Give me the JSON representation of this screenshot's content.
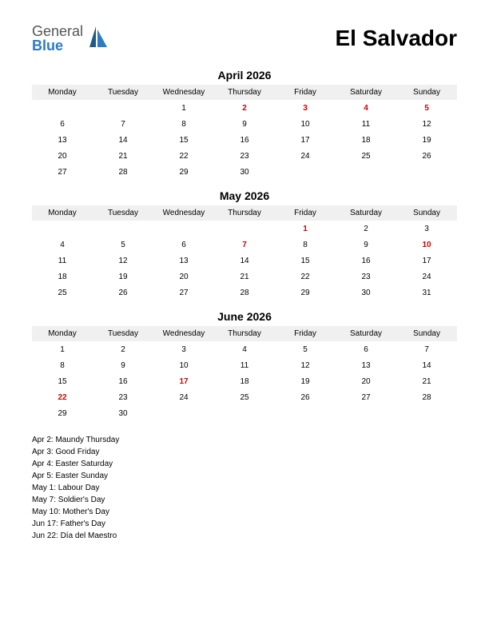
{
  "logo": {
    "general": "General",
    "blue": "Blue",
    "icon_color_1": "#1f5a8a",
    "icon_color_2": "#2b7cc4"
  },
  "country": "El Salvador",
  "day_headers": [
    "Monday",
    "Tuesday",
    "Wednesday",
    "Thursday",
    "Friday",
    "Saturday",
    "Sunday"
  ],
  "month_title_color": "#000000",
  "header_bg": "#f0f0f0",
  "holiday_color": "#cc0000",
  "text_color": "#000000",
  "fontsize_title": 28,
  "fontsize_month": 14,
  "fontsize_cell": 10,
  "months": [
    {
      "title": "April 2026",
      "weeks": [
        [
          {
            "d": ""
          },
          {
            "d": ""
          },
          {
            "d": "1"
          },
          {
            "d": "2",
            "h": true
          },
          {
            "d": "3",
            "h": true
          },
          {
            "d": "4",
            "h": true
          },
          {
            "d": "5",
            "h": true
          }
        ],
        [
          {
            "d": "6"
          },
          {
            "d": "7"
          },
          {
            "d": "8"
          },
          {
            "d": "9"
          },
          {
            "d": "10"
          },
          {
            "d": "11"
          },
          {
            "d": "12"
          }
        ],
        [
          {
            "d": "13"
          },
          {
            "d": "14"
          },
          {
            "d": "15"
          },
          {
            "d": "16"
          },
          {
            "d": "17"
          },
          {
            "d": "18"
          },
          {
            "d": "19"
          }
        ],
        [
          {
            "d": "20"
          },
          {
            "d": "21"
          },
          {
            "d": "22"
          },
          {
            "d": "23"
          },
          {
            "d": "24"
          },
          {
            "d": "25"
          },
          {
            "d": "26"
          }
        ],
        [
          {
            "d": "27"
          },
          {
            "d": "28"
          },
          {
            "d": "29"
          },
          {
            "d": "30"
          },
          {
            "d": ""
          },
          {
            "d": ""
          },
          {
            "d": ""
          }
        ]
      ]
    },
    {
      "title": "May 2026",
      "weeks": [
        [
          {
            "d": ""
          },
          {
            "d": ""
          },
          {
            "d": ""
          },
          {
            "d": ""
          },
          {
            "d": "1",
            "h": true
          },
          {
            "d": "2"
          },
          {
            "d": "3"
          }
        ],
        [
          {
            "d": "4"
          },
          {
            "d": "5"
          },
          {
            "d": "6"
          },
          {
            "d": "7",
            "h": true
          },
          {
            "d": "8"
          },
          {
            "d": "9"
          },
          {
            "d": "10",
            "h": true
          }
        ],
        [
          {
            "d": "11"
          },
          {
            "d": "12"
          },
          {
            "d": "13"
          },
          {
            "d": "14"
          },
          {
            "d": "15"
          },
          {
            "d": "16"
          },
          {
            "d": "17"
          }
        ],
        [
          {
            "d": "18"
          },
          {
            "d": "19"
          },
          {
            "d": "20"
          },
          {
            "d": "21"
          },
          {
            "d": "22"
          },
          {
            "d": "23"
          },
          {
            "d": "24"
          }
        ],
        [
          {
            "d": "25"
          },
          {
            "d": "26"
          },
          {
            "d": "27"
          },
          {
            "d": "28"
          },
          {
            "d": "29"
          },
          {
            "d": "30"
          },
          {
            "d": "31"
          }
        ]
      ]
    },
    {
      "title": "June 2026",
      "weeks": [
        [
          {
            "d": "1"
          },
          {
            "d": "2"
          },
          {
            "d": "3"
          },
          {
            "d": "4"
          },
          {
            "d": "5"
          },
          {
            "d": "6"
          },
          {
            "d": "7"
          }
        ],
        [
          {
            "d": "8"
          },
          {
            "d": "9"
          },
          {
            "d": "10"
          },
          {
            "d": "11"
          },
          {
            "d": "12"
          },
          {
            "d": "13"
          },
          {
            "d": "14"
          }
        ],
        [
          {
            "d": "15"
          },
          {
            "d": "16"
          },
          {
            "d": "17",
            "h": true
          },
          {
            "d": "18"
          },
          {
            "d": "19"
          },
          {
            "d": "20"
          },
          {
            "d": "21"
          }
        ],
        [
          {
            "d": "22",
            "h": true
          },
          {
            "d": "23"
          },
          {
            "d": "24"
          },
          {
            "d": "25"
          },
          {
            "d": "26"
          },
          {
            "d": "27"
          },
          {
            "d": "28"
          }
        ],
        [
          {
            "d": "29"
          },
          {
            "d": "30"
          },
          {
            "d": ""
          },
          {
            "d": ""
          },
          {
            "d": ""
          },
          {
            "d": ""
          },
          {
            "d": ""
          }
        ]
      ]
    }
  ],
  "holidays": [
    "Apr 2: Maundy Thursday",
    "Apr 3: Good Friday",
    "Apr 4: Easter Saturday",
    "Apr 5: Easter Sunday",
    "May 1: Labour Day",
    "May 7: Soldier's Day",
    "May 10: Mother's Day",
    "Jun 17: Father's Day",
    "Jun 22: Día del Maestro"
  ]
}
